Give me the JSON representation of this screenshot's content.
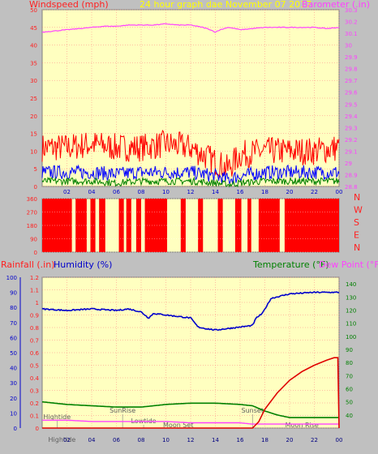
{
  "header": {
    "left_title": "Windspeed (mph)",
    "center_title": "24 hour graph dae   November 07 2017",
    "right_title": "Barometer (.in)"
  },
  "labels": {
    "rainfall": "Rainfall (.in)",
    "humidity": "Humidity (%)",
    "temperature": "Temperature (°F)",
    "dewpoint": "Dew Point (°F)"
  },
  "colors": {
    "background": "#c0c0c0",
    "plot_bg": "#ffffc0",
    "grid": "#ff8080",
    "wind_gust": "#ff0000",
    "wind_avg": "#0000ff",
    "wind_low": "#008000",
    "barometer": "#ff40ff",
    "humidity": "#0000cc",
    "temperature": "#008000",
    "dewpoint": "#ff40ff",
    "rainfall": "#e00000",
    "title_center": "#ffff00"
  },
  "x_ticks": [
    "02",
    "04",
    "06",
    "08",
    "10",
    "12",
    "14",
    "16",
    "18",
    "20",
    "22",
    "00"
  ],
  "compass_letters": [
    "N",
    "W",
    "S",
    "E",
    "N"
  ],
  "events": {
    "high_tide_1": "Hightide",
    "high_tide_2": "Hightide",
    "low_tide": "Lowtide",
    "sunrise": "SunRise",
    "sunset": "Sunset",
    "moonset": "Moon Set",
    "moonrise": "Moon Rise"
  },
  "chart_data": [
    {
      "type": "line",
      "title": "24 hour graph dae   November 07 2017",
      "left_axis": {
        "label": "Windspeed (mph)",
        "range": [
          0,
          50
        ],
        "ticks": [
          0,
          5,
          10,
          15,
          20,
          25,
          30,
          35,
          40,
          45,
          50
        ]
      },
      "right_axis": {
        "label": "Barometer (.in)",
        "range": [
          28.8,
          30.3
        ],
        "ticks": [
          28.8,
          28.9,
          29,
          29.1,
          29.2,
          29.3,
          29.4,
          29.5,
          29.6,
          29.7,
          29.8,
          29.9,
          30,
          30.1,
          30.2,
          30.3
        ]
      },
      "x_range_hours": [
        0,
        24
      ],
      "series": [
        {
          "name": "Barometer (.in)",
          "x": [
            0,
            1,
            2,
            3,
            4,
            5,
            6,
            7,
            8,
            9,
            10,
            11,
            12,
            13,
            13.6,
            14,
            14.4,
            15,
            15.6,
            16,
            17,
            18,
            19,
            20,
            21,
            22,
            23,
            24
          ],
          "values": [
            30.11,
            30.12,
            30.13,
            30.14,
            30.15,
            30.16,
            30.16,
            30.17,
            30.17,
            30.17,
            30.18,
            30.17,
            30.17,
            30.15,
            30.13,
            30.11,
            30.13,
            30.15,
            30.14,
            30.13,
            30.14,
            30.15,
            30.15,
            30.15,
            30.15,
            30.15,
            30.14,
            30.15
          ]
        },
        {
          "x": [
            0,
            2,
            4,
            6,
            8,
            10,
            12,
            14,
            15,
            16,
            18,
            20,
            22,
            24
          ],
          "values": [
            11,
            11,
            12,
            11,
            11,
            12,
            11,
            7,
            5,
            9,
            10,
            10,
            10,
            11
          ]
        },
        {
          "x": [
            0,
            2,
            4,
            6,
            8,
            10,
            12,
            14,
            15,
            16,
            18,
            20,
            22,
            24
          ],
          "values": [
            4,
            4,
            4,
            3.5,
            4,
            4,
            4,
            3,
            2,
            3,
            4,
            4,
            4,
            4
          ]
        },
        {
          "x": [
            0,
            2,
            4,
            6,
            8,
            10,
            12,
            14,
            15,
            16,
            18,
            20,
            22,
            24
          ],
          "values": [
            1.5,
            1.5,
            1.5,
            1,
            1.5,
            1.5,
            1.5,
            1,
            0.5,
            1,
            1.5,
            1.5,
            1.5,
            1.5
          ]
        }
      ]
    },
    {
      "type": "bar",
      "left_axis": {
        "range": [
          0,
          360
        ],
        "ticks": [
          0,
          90,
          180,
          270,
          360
        ]
      },
      "right_labels": [
        "N",
        "W",
        "S",
        "E",
        "N"
      ],
      "x_range_hours": [
        0,
        24
      ],
      "segments_hours": [
        [
          0.0,
          2.4
        ],
        [
          2.7,
          3.6
        ],
        [
          3.9,
          4.3
        ],
        [
          4.6,
          5.1
        ],
        [
          6.2,
          6.6
        ],
        [
          6.8,
          7.2
        ],
        [
          7.6,
          8.0
        ],
        [
          8.3,
          10.1
        ],
        [
          11.2,
          11.6
        ],
        [
          12.6,
          13.0
        ],
        [
          14.2,
          14.6
        ],
        [
          15.6,
          16.1
        ],
        [
          16.6,
          16.9
        ],
        [
          17.5,
          19.2
        ],
        [
          19.6,
          24.0
        ]
      ]
    },
    {
      "type": "line",
      "left_axis": {
        "label": "Rainfall (.in)",
        "range": [
          0,
          1.2
        ],
        "ticks": [
          0,
          0.1,
          0.2,
          0.3,
          0.4,
          0.5,
          0.6,
          0.7,
          0.8,
          0.9,
          1,
          1.1,
          1.2
        ]
      },
      "left_axis_2": {
        "label": "Humidity (%)",
        "range": [
          0,
          100
        ],
        "ticks": [
          0,
          10,
          20,
          30,
          40,
          50,
          60,
          70,
          80,
          90,
          100
        ]
      },
      "right_axis": {
        "label": "Temperature (°F)",
        "range": [
          30,
          145
        ],
        "ticks": [
          40,
          50,
          60,
          70,
          80,
          90,
          100,
          110,
          120,
          130,
          140
        ]
      },
      "x_range_hours": [
        0,
        24
      ],
      "series": [
        {
          "name": "Humidity (%)",
          "x": [
            0,
            2,
            4,
            6,
            7,
            8,
            8.6,
            9,
            10,
            11,
            12,
            12.6,
            13.2,
            14,
            15,
            16,
            17,
            17.3,
            17.8,
            18.5,
            20,
            22,
            24
          ],
          "values": [
            79,
            78,
            79,
            78,
            79,
            77,
            73,
            76,
            75,
            74,
            73,
            67,
            66,
            65,
            66,
            67,
            68,
            73,
            76,
            86,
            89,
            90,
            90
          ]
        },
        {
          "name": "Temperature (°F)",
          "x": [
            0,
            2,
            4,
            6,
            8,
            10,
            12,
            14,
            16,
            17,
            17.5,
            18,
            19,
            20,
            22,
            24
          ],
          "values": [
            50,
            48,
            47,
            46,
            46,
            48,
            49,
            49,
            48,
            47,
            45,
            43,
            40,
            38,
            38,
            38
          ]
        },
        {
          "name": "Dew Point (°F)",
          "x": [
            0,
            2,
            4,
            6,
            8,
            10,
            12,
            14,
            16,
            17,
            18,
            20,
            22,
            24
          ],
          "values": [
            36,
            36,
            35,
            35,
            35,
            35,
            34,
            34,
            34,
            33,
            33,
            33,
            33,
            33
          ]
        },
        {
          "name": "Rainfall (.in)",
          "x": [
            0,
            17,
            17.5,
            18,
            19,
            20,
            21,
            22,
            23,
            23.6,
            23.9,
            24
          ],
          "values": [
            0,
            0,
            0.05,
            0.15,
            0.28,
            0.38,
            0.45,
            0.5,
            0.54,
            0.56,
            0.56,
            0
          ]
        }
      ]
    }
  ]
}
